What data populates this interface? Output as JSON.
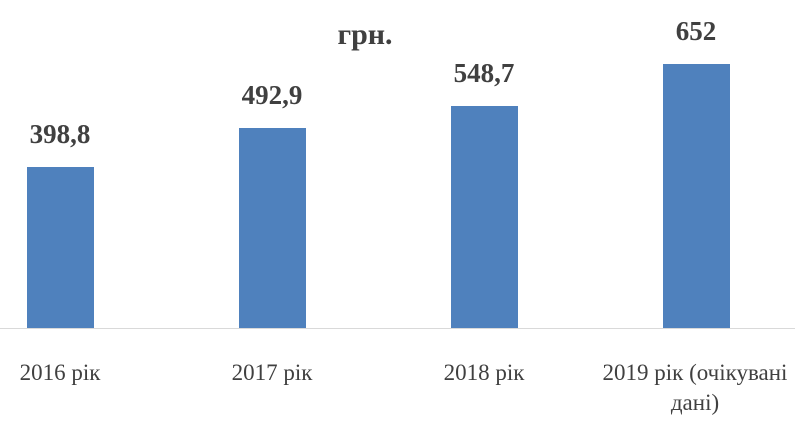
{
  "chart_data": {
    "type": "bar",
    "title": "грн.",
    "categories": [
      "2016 рік",
      "2017 рік",
      "2018 рік",
      "2019 рік (очікувані дані)"
    ],
    "values": [
      398.8,
      492.9,
      548.7,
      652
    ],
    "value_labels": [
      "398,8",
      "492,9",
      "548,7",
      "652"
    ],
    "color": "#4f81bd"
  }
}
